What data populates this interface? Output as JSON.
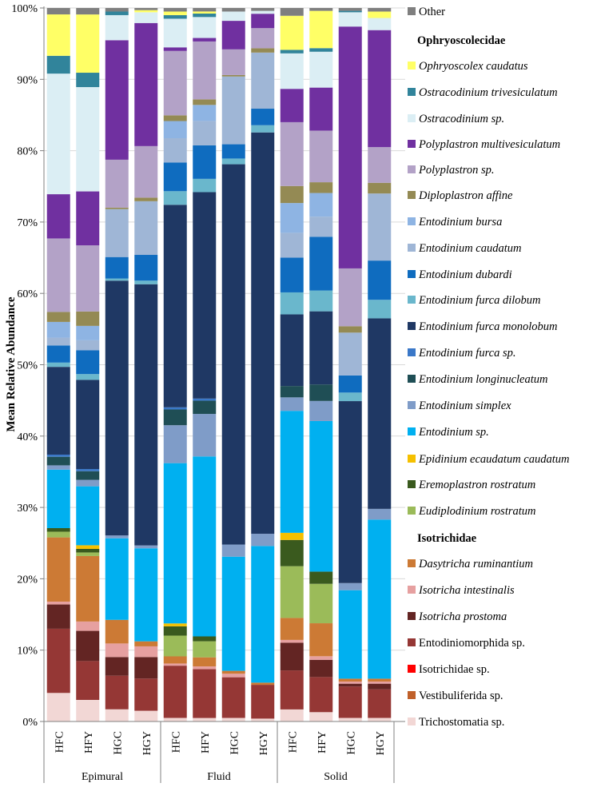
{
  "chart_data": {
    "type": "bar",
    "stacked": true,
    "percent_stacked": true,
    "ylabel": "Mean Relative Abundance",
    "ylim": [
      0,
      100
    ],
    "yticks": [
      "0%",
      "10%",
      "20%",
      "30%",
      "40%",
      "50%",
      "60%",
      "70%",
      "80%",
      "90%",
      "100%"
    ],
    "groups": [
      {
        "label": "Epimural",
        "categories": [
          "HFC",
          "HFY",
          "HGC",
          "HGY"
        ]
      },
      {
        "label": "Fluid",
        "categories": [
          "HFC",
          "HFY",
          "HGC",
          "HGY"
        ]
      },
      {
        "label": "Solid",
        "categories": [
          "HFC",
          "HFY",
          "HGC",
          "HGY"
        ]
      }
    ],
    "legend": [
      {
        "kind": "entry",
        "key": "other",
        "label": "Other",
        "italic": false
      },
      {
        "kind": "header",
        "label": "Ophryoscolecidae"
      },
      {
        "kind": "entry",
        "key": "oph_caudatus",
        "label": "Ophryoscolex caudatus",
        "italic": true
      },
      {
        "kind": "entry",
        "key": "ost_triv",
        "label": "Ostracodinium trivesiculatum",
        "italic": true
      },
      {
        "kind": "entry",
        "key": "ost_sp",
        "label": "Ostracodinium sp.",
        "italic": true
      },
      {
        "kind": "entry",
        "key": "poly_multi",
        "label": "Polyplastron multivesiculatum",
        "italic": true
      },
      {
        "kind": "entry",
        "key": "poly_sp",
        "label": "Polyplastron sp.",
        "italic": true
      },
      {
        "kind": "entry",
        "key": "dip_affine",
        "label": "Diploplastron affine",
        "italic": true
      },
      {
        "kind": "entry",
        "key": "ent_bursa",
        "label": "Entodinium bursa",
        "italic": true
      },
      {
        "kind": "entry",
        "key": "ent_caudatum",
        "label": "Entodinium caudatum",
        "italic": true
      },
      {
        "kind": "entry",
        "key": "ent_dubardi",
        "label": "Entodinium dubardi",
        "italic": true
      },
      {
        "kind": "entry",
        "key": "ent_fd",
        "label": "Entodinium furca dilobum",
        "italic": true
      },
      {
        "kind": "entry",
        "key": "ent_fm",
        "label": "Entodinium furca monolobum",
        "italic": true
      },
      {
        "kind": "entry",
        "key": "ent_fsp",
        "label": "Entodinium furca sp.",
        "italic": true
      },
      {
        "kind": "entry",
        "key": "ent_long",
        "label": "Entodinium longinucleatum",
        "italic": true
      },
      {
        "kind": "entry",
        "key": "ent_simplex",
        "label": "Entodinium simplex",
        "italic": true
      },
      {
        "kind": "entry",
        "key": "ent_sp",
        "label": "Entodinium sp.",
        "italic": true
      },
      {
        "kind": "entry",
        "key": "epi_ecaud",
        "label": "Epidinium ecaudatum caudatum",
        "italic": true
      },
      {
        "kind": "entry",
        "key": "ere_rost",
        "label": "Eremoplastron rostratum",
        "italic": true
      },
      {
        "kind": "entry",
        "key": "eud_rost",
        "label": "Eudiplodinium rostratum",
        "italic": true
      },
      {
        "kind": "header",
        "label": "Isotrichidae"
      },
      {
        "kind": "entry",
        "key": "das_rum",
        "label": "Dasytricha ruminantium",
        "italic": true
      },
      {
        "kind": "entry",
        "key": "iso_int",
        "label": "Isotricha intestinalis",
        "italic": true
      },
      {
        "kind": "entry",
        "key": "iso_pros",
        "label": "Isotricha prostoma",
        "italic": true
      },
      {
        "kind": "entry",
        "key": "entodiniomorphida",
        "label": "Entodiniomorphida sp.",
        "italic": false
      },
      {
        "kind": "entry",
        "key": "isotrichidae_sp",
        "label": "Isotrichidae sp.",
        "italic": false
      },
      {
        "kind": "entry",
        "key": "vestibuliferida",
        "label": "Vestibuliferida sp.",
        "italic": false
      },
      {
        "kind": "entry",
        "key": "trichostomatia",
        "label": "Trichostomatia sp.",
        "italic": false
      }
    ],
    "colors": {
      "trichostomatia": "#f2d7d5",
      "vestibuliferida": "#c0602a",
      "isotrichidae_sp": "#ff0000",
      "entodiniomorphida": "#953735",
      "iso_pros": "#632523",
      "iso_int": "#e6a0a0",
      "das_rum": "#cc7a35",
      "eud_rost": "#9bbb59",
      "ere_rost": "#3a5a1e",
      "epi_ecaud": "#f5c000",
      "ent_sp": "#00b0f0",
      "ent_simplex": "#7f9cc8",
      "ent_long": "#1f4e55",
      "ent_fsp": "#3a78c8",
      "ent_fm": "#1f3864",
      "ent_fd": "#6ab7cc",
      "ent_dubardi": "#0f6cbf",
      "ent_caudatum": "#9fb6d6",
      "ent_bursa": "#8eb4e3",
      "dip_affine": "#948a54",
      "poly_sp": "#b3a2c7",
      "poly_multi": "#7030a0",
      "ost_sp": "#dbeef4",
      "ost_triv": "#31849b",
      "oph_caudatus": "#ffff66",
      "other": "#7f7f7f"
    },
    "stack_order": [
      "trichostomatia",
      "vestibuliferida",
      "isotrichidae_sp",
      "entodiniomorphida",
      "iso_pros",
      "iso_int",
      "das_rum",
      "eud_rost",
      "ere_rost",
      "epi_ecaud",
      "ent_sp",
      "ent_simplex",
      "ent_long",
      "ent_fsp",
      "ent_fm",
      "ent_fd",
      "ent_dubardi",
      "ent_caudatum",
      "ent_bursa",
      "dip_affine",
      "poly_sp",
      "poly_multi",
      "ost_sp",
      "ost_triv",
      "oph_caudatus",
      "other"
    ],
    "series_values": {
      "trichostomatia": [
        4.0,
        3.0,
        1.7,
        1.5,
        0.5,
        0.5,
        0.5,
        0.4,
        1.7,
        1.3,
        0.5,
        0.5
      ],
      "vestibuliferida": [
        0.0,
        0.0,
        0.0,
        0.0,
        0.0,
        0.0,
        0.0,
        0.0,
        0.0,
        0.0,
        0.0,
        0.0
      ],
      "isotrichidae_sp": [
        0.0,
        0.0,
        0.0,
        0.0,
        0.0,
        0.0,
        0.0,
        0.0,
        0.0,
        0.0,
        0.0,
        0.0
      ],
      "entodiniomorphida": [
        9.0,
        5.4,
        4.7,
        4.5,
        7.3,
        7.0,
        5.7,
        4.7,
        5.5,
        4.9,
        4.4,
        4.0
      ],
      "iso_pros": [
        3.4,
        4.2,
        2.6,
        3.0,
        0.0,
        0.0,
        0.0,
        0.0,
        3.9,
        2.4,
        0.4,
        0.8
      ],
      "iso_int": [
        0.4,
        1.3,
        1.9,
        1.5,
        0.3,
        0.4,
        0.5,
        0.0,
        0.4,
        0.5,
        0.3,
        0.3
      ],
      "das_rum": [
        9.0,
        9.1,
        3.3,
        0.7,
        1.0,
        1.3,
        0.4,
        0.3,
        3.1,
        4.6,
        0.4,
        0.4
      ],
      "eud_rost": [
        0.8,
        0.5,
        0.0,
        0.0,
        2.9,
        2.3,
        0.0,
        0.0,
        7.3,
        5.5,
        0.0,
        0.0
      ],
      "ere_rost": [
        0.5,
        0.5,
        0.0,
        0.0,
        1.3,
        0.7,
        0.0,
        0.0,
        3.7,
        1.7,
        0.0,
        0.0
      ],
      "epi_ecaud": [
        0.0,
        0.5,
        0.0,
        0.0,
        0.4,
        0.0,
        0.0,
        0.0,
        1.0,
        0.0,
        0.0,
        0.0
      ],
      "ent_sp": [
        8.2,
        8.2,
        11.4,
        13.0,
        22.4,
        25.8,
        16.0,
        19.0,
        17.2,
        21.0,
        12.4,
        22.3
      ],
      "ent_simplex": [
        0.6,
        0.9,
        0.4,
        0.4,
        5.3,
        6.1,
        1.7,
        1.7,
        1.9,
        2.8,
        1.0,
        1.5
      ],
      "ent_long": [
        1.2,
        1.2,
        0.0,
        0.0,
        2.2,
        1.9,
        0.0,
        0.0,
        1.6,
        2.3,
        0.0,
        0.0
      ],
      "ent_fsp": [
        0.3,
        0.3,
        0.0,
        0.0,
        0.3,
        0.3,
        0.0,
        0.0,
        0.0,
        0.0,
        0.0,
        0.0
      ],
      "ent_fm": [
        12.3,
        12.4,
        35.6,
        36.5,
        28.3,
        29.6,
        53.3,
        55.8,
        10.1,
        10.2,
        25.5,
        26.7
      ],
      "ent_fd": [
        0.6,
        0.8,
        0.3,
        0.5,
        1.9,
        1.9,
        0.8,
        1.0,
        3.1,
        2.9,
        1.2,
        2.6
      ],
      "ent_dubardi": [
        2.4,
        3.3,
        3.0,
        3.6,
        4.0,
        4.8,
        2.0,
        2.3,
        4.9,
        7.5,
        2.4,
        5.5
      ],
      "ent_caudatum": [
        1.1,
        1.4,
        6.7,
        7.5,
        3.4,
        3.5,
        9.5,
        7.8,
        3.5,
        2.8,
        6.0,
        9.4
      ],
      "ent_bursa": [
        2.2,
        2.0,
        0.0,
        0.0,
        2.4,
        2.3,
        0.0,
        0.0,
        4.2,
        3.3,
        0.0,
        0.0
      ],
      "dip_affine": [
        1.4,
        2.0,
        0.2,
        0.5,
        0.8,
        0.8,
        0.2,
        0.6,
        2.4,
        1.5,
        0.9,
        1.5
      ],
      "poly_sp": [
        10.3,
        9.2,
        6.7,
        7.2,
        9.0,
        8.3,
        3.6,
        2.8,
        9.0,
        7.2,
        8.1,
        5.0
      ],
      "poly_multi": [
        6.2,
        7.5,
        16.7,
        17.2,
        0.5,
        0.5,
        4.0,
        2.0,
        4.7,
        6.0,
        33.9,
        16.4
      ],
      "ost_sp": [
        16.9,
        14.5,
        3.5,
        1.5,
        4.0,
        3.0,
        1.3,
        0.4,
        5.0,
        5.0,
        2.0,
        1.7
      ],
      "ost_triv": [
        2.5,
        2.0,
        0.5,
        0.0,
        0.5,
        0.5,
        0.0,
        0.0,
        0.5,
        0.5,
        0.2,
        0.0
      ],
      "oph_caudatus": [
        5.8,
        8.1,
        0.0,
        0.3,
        0.5,
        0.3,
        0.0,
        0.0,
        4.8,
        5.2,
        0.0,
        0.9
      ],
      "other": [
        0.9,
        0.9,
        0.5,
        0.3,
        0.5,
        0.5,
        0.5,
        0.4,
        1.1,
        0.4,
        0.4,
        0.5
      ]
    }
  }
}
